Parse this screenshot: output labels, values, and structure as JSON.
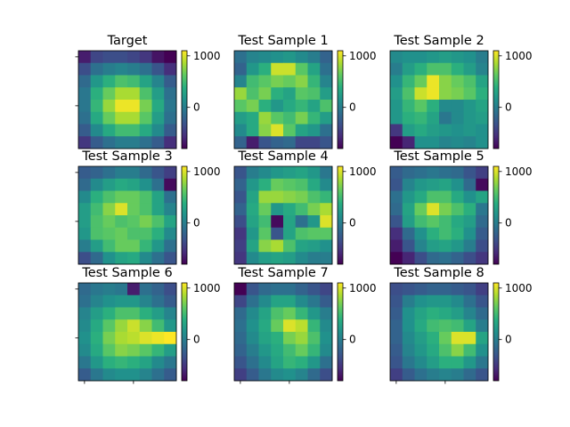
{
  "chart_data": {
    "type": "heatmap",
    "colormap": "viridis",
    "colorbar": {
      "vmin": -800,
      "vmax": 1100,
      "ticks": [
        0,
        1000
      ],
      "tick_labels": [
        "0",
        "1000"
      ]
    },
    "panels": [
      {
        "title": "Target",
        "values": [
          [
            -650,
            -400,
            -350,
            -350,
            -400,
            -500,
            -700,
            -800
          ],
          [
            -350,
            -100,
            0,
            50,
            0,
            -100,
            -300,
            -550
          ],
          [
            -150,
            200,
            400,
            550,
            500,
            300,
            50,
            -250
          ],
          [
            -50,
            400,
            650,
            850,
            850,
            550,
            250,
            -100
          ],
          [
            -50,
            450,
            800,
            1050,
            1050,
            700,
            350,
            -50
          ],
          [
            -100,
            350,
            650,
            850,
            850,
            600,
            250,
            -100
          ],
          [
            -250,
            100,
            350,
            500,
            500,
            350,
            100,
            -250
          ],
          [
            -500,
            -250,
            -100,
            0,
            0,
            -100,
            -250,
            -550
          ]
        ]
      },
      {
        "title": "Test Sample 1",
        "values": [
          [
            -100,
            50,
            100,
            150,
            200,
            100,
            0,
            -200
          ],
          [
            -200,
            200,
            400,
            950,
            950,
            600,
            300,
            -100
          ],
          [
            50,
            500,
            600,
            700,
            650,
            750,
            450,
            50
          ],
          [
            800,
            550,
            700,
            400,
            300,
            600,
            550,
            250
          ],
          [
            600,
            700,
            400,
            200,
            350,
            450,
            300,
            550
          ],
          [
            250,
            350,
            800,
            600,
            500,
            700,
            450,
            250
          ],
          [
            100,
            350,
            750,
            1000,
            600,
            300,
            200,
            -100
          ],
          [
            -200,
            -650,
            -300,
            -200,
            -150,
            -400,
            -400,
            -300
          ]
        ]
      },
      {
        "title": "Test Sample 2",
        "values": [
          [
            100,
            150,
            150,
            200,
            250,
            200,
            150,
            0
          ],
          [
            0,
            250,
            400,
            550,
            550,
            400,
            250,
            50
          ],
          [
            150,
            450,
            650,
            1050,
            750,
            650,
            550,
            300
          ],
          [
            250,
            550,
            950,
            1050,
            750,
            700,
            600,
            400
          ],
          [
            200,
            450,
            600,
            400,
            100,
            100,
            200,
            300
          ],
          [
            200,
            400,
            450,
            300,
            -50,
            100,
            200,
            250
          ],
          [
            -500,
            250,
            350,
            250,
            200,
            150,
            200,
            150
          ],
          [
            -800,
            -600,
            150,
            150,
            50,
            100,
            50,
            150
          ]
        ]
      },
      {
        "title": "Test Sample 3",
        "values": [
          [
            -250,
            -200,
            -100,
            0,
            0,
            -150,
            -300,
            -450
          ],
          [
            -150,
            100,
            250,
            350,
            300,
            150,
            -100,
            -750
          ],
          [
            100,
            400,
            550,
            650,
            650,
            550,
            300,
            -100
          ],
          [
            250,
            500,
            750,
            1000,
            650,
            550,
            300,
            50
          ],
          [
            250,
            550,
            650,
            550,
            600,
            700,
            550,
            300
          ],
          [
            200,
            550,
            600,
            650,
            550,
            550,
            400,
            100
          ],
          [
            0,
            250,
            500,
            650,
            650,
            450,
            200,
            -100
          ],
          [
            -350,
            -150,
            150,
            300,
            350,
            100,
            -100,
            -300
          ]
        ]
      },
      {
        "title": "Test Sample 4",
        "values": [
          [
            -300,
            0,
            100,
            200,
            250,
            300,
            200,
            -50
          ],
          [
            -200,
            200,
            400,
            650,
            600,
            550,
            350,
            100
          ],
          [
            -300,
            300,
            800,
            800,
            750,
            700,
            550,
            450
          ],
          [
            -200,
            350,
            650,
            200,
            350,
            500,
            700,
            850
          ],
          [
            -350,
            300,
            500,
            -750,
            300,
            -100,
            200,
            1000
          ],
          [
            -500,
            200,
            600,
            -300,
            300,
            550,
            600,
            600
          ],
          [
            -450,
            300,
            750,
            850,
            550,
            300,
            250,
            150
          ],
          [
            -500,
            100,
            250,
            300,
            250,
            100,
            0,
            0
          ]
        ]
      },
      {
        "title": "Test Sample 5",
        "values": [
          [
            -250,
            -150,
            -100,
            -50,
            -100,
            -150,
            -300,
            -450
          ],
          [
            -300,
            50,
            200,
            250,
            300,
            150,
            -150,
            -750
          ],
          [
            -100,
            200,
            350,
            550,
            550,
            350,
            150,
            300
          ],
          [
            -150,
            300,
            650,
            1000,
            700,
            550,
            400,
            -50
          ],
          [
            -300,
            250,
            500,
            600,
            500,
            350,
            250,
            -150
          ],
          [
            -550,
            -150,
            150,
            400,
            500,
            400,
            150,
            -250
          ],
          [
            -650,
            -300,
            50,
            250,
            300,
            200,
            0,
            -350
          ],
          [
            -800,
            -600,
            -350,
            -150,
            -100,
            -200,
            -350,
            -500
          ]
        ]
      },
      {
        "title": "Test Sample 6",
        "values": [
          [
            -150,
            -50,
            0,
            -50,
            -650,
            -100,
            -200,
            -350
          ],
          [
            -100,
            50,
            150,
            200,
            200,
            50,
            -100,
            -250
          ],
          [
            50,
            250,
            400,
            550,
            550,
            400,
            250,
            50
          ],
          [
            100,
            350,
            600,
            800,
            950,
            750,
            500,
            200
          ],
          [
            150,
            400,
            700,
            850,
            900,
            1000,
            1050,
            1100
          ],
          [
            100,
            350,
            600,
            750,
            700,
            600,
            450,
            250
          ],
          [
            -50,
            200,
            400,
            450,
            400,
            300,
            100,
            -50
          ],
          [
            -250,
            -50,
            100,
            150,
            150,
            50,
            -100,
            -250
          ]
        ]
      },
      {
        "title": "Test Sample 7",
        "values": [
          [
            -800,
            -300,
            -150,
            -100,
            -100,
            -200,
            -300,
            -400
          ],
          [
            -400,
            -100,
            100,
            300,
            300,
            100,
            -50,
            -250
          ],
          [
            -150,
            100,
            300,
            550,
            650,
            450,
            200,
            0
          ],
          [
            -100,
            150,
            350,
            650,
            1000,
            900,
            450,
            100
          ],
          [
            -150,
            100,
            300,
            400,
            700,
            800,
            550,
            150
          ],
          [
            -200,
            0,
            200,
            350,
            500,
            650,
            450,
            100
          ],
          [
            -300,
            -100,
            100,
            300,
            450,
            400,
            200,
            -100
          ],
          [
            -450,
            -250,
            -50,
            100,
            150,
            50,
            -150,
            -350
          ]
        ]
      },
      {
        "title": "Test Sample 8",
        "values": [
          [
            -350,
            -300,
            -250,
            -200,
            -200,
            -250,
            -300,
            -450
          ],
          [
            -300,
            0,
            150,
            200,
            200,
            100,
            -100,
            -300
          ],
          [
            -250,
            150,
            300,
            400,
            350,
            250,
            50,
            -150
          ],
          [
            -200,
            150,
            350,
            500,
            550,
            500,
            300,
            0
          ],
          [
            -200,
            100,
            250,
            400,
            650,
            1000,
            1000,
            300
          ],
          [
            -250,
            50,
            200,
            350,
            550,
            750,
            500,
            150
          ],
          [
            -300,
            -50,
            100,
            250,
            400,
            400,
            200,
            -50
          ],
          [
            -450,
            -250,
            -100,
            0,
            50,
            0,
            -150,
            -300
          ]
        ]
      }
    ]
  }
}
